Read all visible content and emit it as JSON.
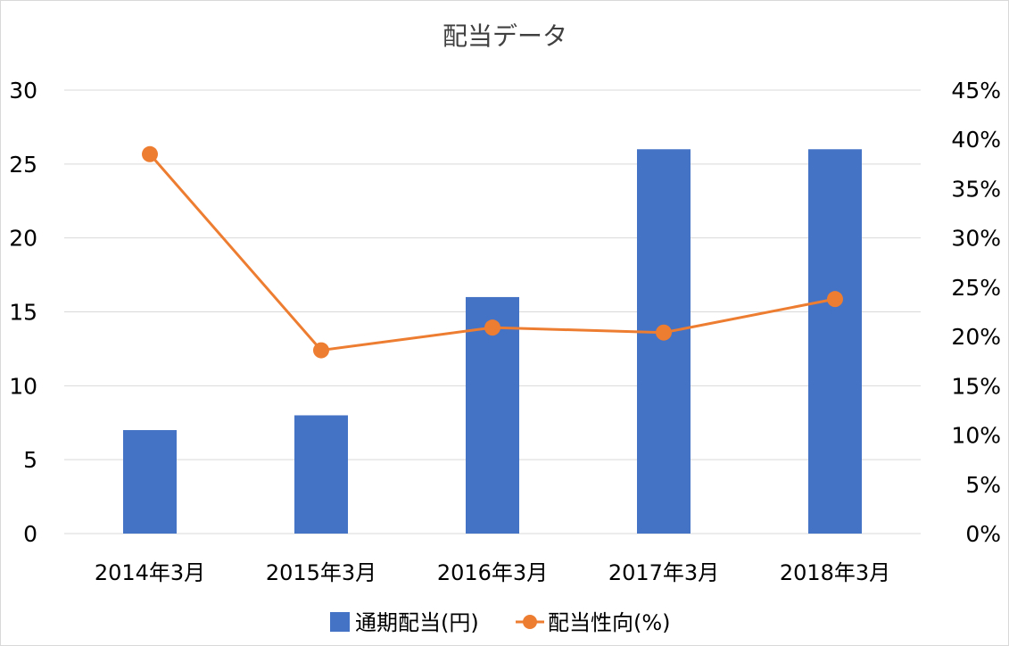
{
  "chart_data": {
    "type": "bar",
    "title": "配当データ",
    "categories": [
      "2014年3月",
      "2015年3月",
      "2016年3月",
      "2017年3月",
      "2018年3月"
    ],
    "series": [
      {
        "name": "通期配当(円)",
        "type": "bar",
        "axis": "left",
        "color": "#4472C4",
        "values": [
          7,
          8,
          16,
          26,
          26
        ]
      },
      {
        "name": "配当性向(%)",
        "type": "line",
        "axis": "right",
        "color": "#ED7D31",
        "values": [
          38.5,
          18.6,
          20.9,
          20.4,
          23.8
        ]
      }
    ],
    "y_left": {
      "min": 0,
      "max": 30,
      "step": 5,
      "ticks": [
        "0",
        "5",
        "10",
        "15",
        "20",
        "25",
        "30"
      ]
    },
    "y_right": {
      "min": 0,
      "max": 45,
      "step": 5,
      "ticks": [
        "0%",
        "5%",
        "10%",
        "15%",
        "20%",
        "25%",
        "30%",
        "35%",
        "40%",
        "45%"
      ]
    },
    "grid": true,
    "legend_position": "bottom"
  }
}
